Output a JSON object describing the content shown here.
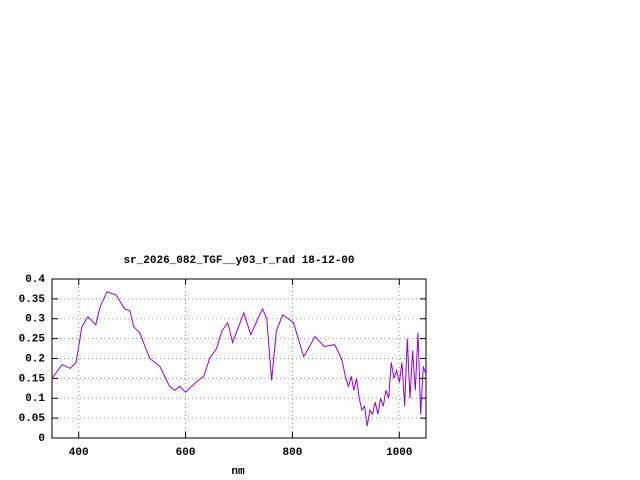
{
  "chart_data": {
    "type": "line",
    "title": "sr_2026_082_TGF__y03_r_rad 18-12-00",
    "x_label": "nm",
    "x": [
      350,
      369,
      384,
      395,
      406,
      417,
      432,
      440,
      453,
      470,
      486,
      496,
      503,
      514,
      533,
      552,
      570,
      580,
      589,
      600,
      619,
      634,
      645,
      658,
      668,
      679,
      688,
      709,
      722,
      744,
      752,
      761,
      770,
      782,
      802,
      821,
      830,
      842,
      860,
      879,
      892,
      900,
      905,
      910,
      915,
      920,
      925,
      930,
      935,
      940,
      945,
      950,
      955,
      960,
      965,
      970,
      975,
      980,
      985,
      990,
      995,
      1000,
      1005,
      1010,
      1015,
      1020,
      1025,
      1030,
      1035,
      1040,
      1045,
      1050
    ],
    "series": [
      {
        "name": "sr_2026_082_TGF__y03_r_rad",
        "color": "#9400d3",
        "values": [
          0.15,
          0.185,
          0.175,
          0.19,
          0.28,
          0.305,
          0.285,
          0.33,
          0.368,
          0.36,
          0.325,
          0.32,
          0.28,
          0.265,
          0.2,
          0.18,
          0.13,
          0.12,
          0.13,
          0.115,
          0.14,
          0.155,
          0.2,
          0.225,
          0.27,
          0.29,
          0.24,
          0.315,
          0.26,
          0.325,
          0.3,
          0.145,
          0.27,
          0.31,
          0.29,
          0.205,
          0.225,
          0.255,
          0.23,
          0.235,
          0.2,
          0.15,
          0.13,
          0.155,
          0.12,
          0.15,
          0.1,
          0.07,
          0.08,
          0.03,
          0.07,
          0.06,
          0.09,
          0.06,
          0.1,
          0.08,
          0.12,
          0.1,
          0.19,
          0.15,
          0.17,
          0.14,
          0.19,
          0.08,
          0.25,
          0.1,
          0.22,
          0.12,
          0.265,
          0.06,
          0.18,
          0.16
        ]
      }
    ],
    "xlim": [
      350,
      1050
    ],
    "xticks": [
      400,
      600,
      800,
      1000
    ],
    "ylim": [
      0,
      0.4
    ],
    "yticks": [
      0,
      0.05,
      0.1,
      0.15,
      0.2,
      0.25,
      0.3,
      0.35,
      0.4
    ],
    "grid": true
  }
}
